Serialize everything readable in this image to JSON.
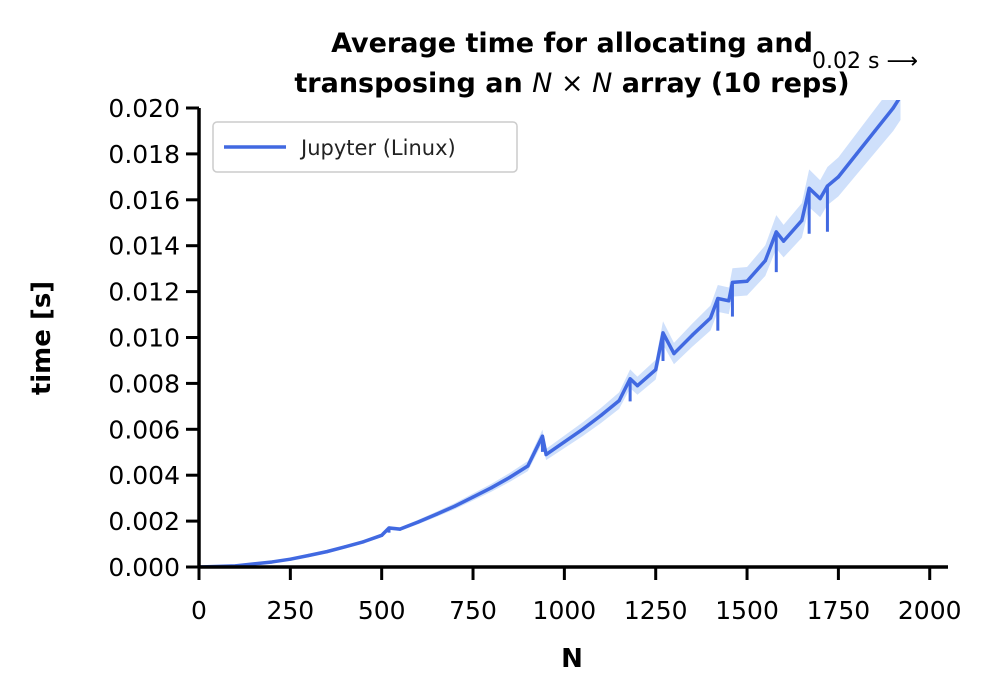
{
  "chart_data": {
    "type": "line",
    "title_line1": "Average time for allocating and",
    "title_line2_a": "transposing an ",
    "title_line2_math": "N × N",
    "title_line2_b": " array (10 reps)",
    "xlabel": "N",
    "ylabel": "time [s]",
    "xlim": [
      0,
      2050
    ],
    "ylim": [
      0,
      0.02
    ],
    "xticks": [
      0,
      250,
      500,
      750,
      1000,
      1250,
      1500,
      1750,
      2000
    ],
    "xtick_labels": [
      "0",
      "250",
      "500",
      "750",
      "1000",
      "1250",
      "1500",
      "1750",
      "2000"
    ],
    "yticks": [
      0,
      0.002,
      0.004,
      0.006,
      0.008,
      0.01,
      0.012,
      0.014,
      0.016,
      0.018,
      0.02
    ],
    "ytick_labels": [
      "0.000",
      "0.002",
      "0.004",
      "0.006",
      "0.008",
      "0.010",
      "0.012",
      "0.014",
      "0.016",
      "0.018",
      "0.020"
    ],
    "grid": false,
    "legend_position": "top-left",
    "annotation": "0.02 s ⟶",
    "series": [
      {
        "name": "Jupyter (Linux)",
        "color": "#4169e1",
        "band_color": "#cfe0fb",
        "x": [
          0,
          100,
          200,
          250,
          300,
          350,
          400,
          450,
          500,
          520,
          550,
          600,
          650,
          700,
          750,
          800,
          850,
          900,
          940,
          950,
          1000,
          1050,
          1100,
          1150,
          1180,
          1200,
          1250,
          1270,
          1300,
          1350,
          1400,
          1420,
          1450,
          1460,
          1500,
          1550,
          1580,
          1600,
          1650,
          1670,
          1700,
          1720,
          1750,
          1800,
          1850,
          1900,
          1920
        ],
        "y": [
          0.0,
          5e-05,
          0.00022,
          0.00034,
          0.0005,
          0.00067,
          0.00088,
          0.0011,
          0.00138,
          0.0017,
          0.00165,
          0.00196,
          0.0023,
          0.00265,
          0.00305,
          0.00345,
          0.0039,
          0.0044,
          0.0057,
          0.0049,
          0.00545,
          0.006,
          0.0066,
          0.00725,
          0.0082,
          0.0079,
          0.0086,
          0.0102,
          0.0093,
          0.0101,
          0.01085,
          0.0117,
          0.0116,
          0.0124,
          0.01245,
          0.01335,
          0.0146,
          0.0142,
          0.0151,
          0.0165,
          0.01605,
          0.0166,
          0.017,
          0.018,
          0.019,
          0.02,
          0.0205
        ],
        "spikes": [
          {
            "x": 520,
            "y": 0.0017
          },
          {
            "x": 940,
            "y": 0.0057
          },
          {
            "x": 1180,
            "y": 0.0082
          },
          {
            "x": 1270,
            "y": 0.0102
          },
          {
            "x": 1420,
            "y": 0.0117
          },
          {
            "x": 1460,
            "y": 0.0124
          },
          {
            "x": 1580,
            "y": 0.0146
          },
          {
            "x": 1670,
            "y": 0.0165
          },
          {
            "x": 1720,
            "y": 0.0166
          }
        ]
      }
    ]
  }
}
